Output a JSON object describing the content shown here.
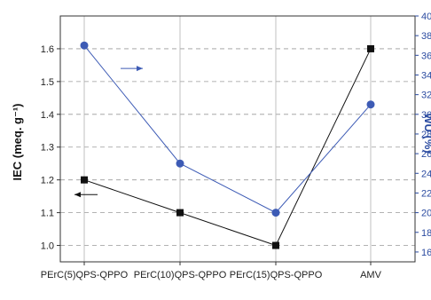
{
  "chart_data": {
    "type": "line",
    "categories": [
      "PErC(5)QPS-QPPO",
      "PErC(10)QPS-QPPO",
      "PErC(15)QPS-QPPO",
      "AMV"
    ],
    "series": [
      {
        "values": [
          1.2,
          1.1,
          1.0,
          1.6
        ],
        "axis": "left",
        "color": "#111111",
        "marker": "square"
      },
      {
        "values": [
          37,
          25,
          20,
          31
        ],
        "axis": "right",
        "color": "#3d5bb5",
        "marker": "circle"
      }
    ],
    "ylabel": "IEC (meq. g⁻¹)",
    "ylabel_right": "WU (%)",
    "ylim": [
      0.95,
      1.7
    ],
    "ylim_right": [
      15,
      40
    ],
    "yticks": [
      1.0,
      1.1,
      1.2,
      1.3,
      1.4,
      1.5,
      1.6
    ],
    "yticks_right": [
      16,
      18,
      20,
      22,
      24,
      26,
      28,
      30,
      32,
      34,
      36,
      38,
      40
    ],
    "grid": "dashed horizontal at left ticks, solid vertical at categories",
    "annotations": [
      {
        "type": "arrow",
        "direction": "left",
        "color": "#111111",
        "near": "series 1"
      },
      {
        "type": "arrow",
        "direction": "right",
        "color": "#3d5bb5",
        "near": "series 2"
      }
    ]
  }
}
